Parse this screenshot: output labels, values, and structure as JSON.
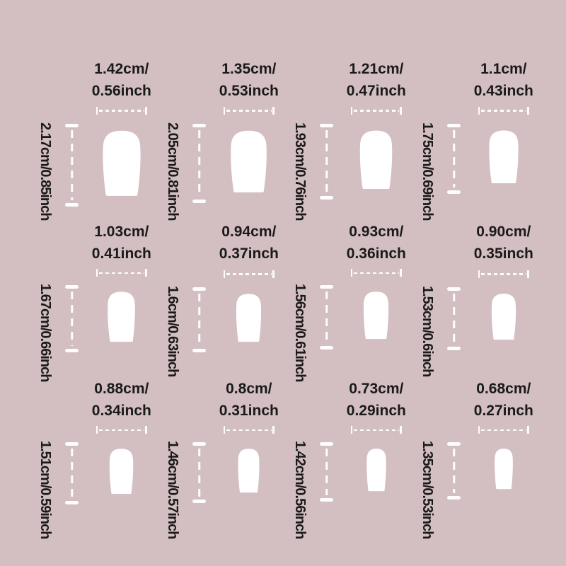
{
  "background_color": "#d3bec1",
  "text_color": "#1a1a1a",
  "measure_line_color": "#fdfdfd",
  "nail_color": "#ffffff",
  "description": "Press-on nail tip size chart, 12 sizes in 3 rows x 4 columns",
  "nails": [
    {
      "width_label_line1": "1.42cm/",
      "width_label_line2": "0.56inch",
      "height_label": "2.17cm/0.85inch",
      "width_cm": 1.42,
      "height_cm": 2.17
    },
    {
      "width_label_line1": "1.35cm/",
      "width_label_line2": "0.53inch",
      "height_label": "2.05cm/0.81inch",
      "width_cm": 1.35,
      "height_cm": 2.05
    },
    {
      "width_label_line1": "1.21cm/",
      "width_label_line2": "0.47inch",
      "height_label": "1.93cm/0.76inch",
      "width_cm": 1.21,
      "height_cm": 1.93
    },
    {
      "width_label_line1": "1.1cm/",
      "width_label_line2": "0.43inch",
      "height_label": "1.75cm/0.69inch",
      "width_cm": 1.1,
      "height_cm": 1.75
    },
    {
      "width_label_line1": "1.03cm/",
      "width_label_line2": "0.41inch",
      "height_label": "1.67cm/0.66inch",
      "width_cm": 1.03,
      "height_cm": 1.67
    },
    {
      "width_label_line1": "0.94cm/",
      "width_label_line2": "0.37inch",
      "height_label": "1.6cm/0.63inch",
      "width_cm": 0.94,
      "height_cm": 1.6
    },
    {
      "width_label_line1": "0.93cm/",
      "width_label_line2": "0.36inch",
      "height_label": "1.56cm/0.61inch",
      "width_cm": 0.93,
      "height_cm": 1.56
    },
    {
      "width_label_line1": "0.90cm/",
      "width_label_line2": "0.35inch",
      "height_label": "1.53cm/0.6inch",
      "width_cm": 0.9,
      "height_cm": 1.53
    },
    {
      "width_label_line1": "0.88cm/",
      "width_label_line2": "0.34inch",
      "height_label": "1.51cm/0.59inch",
      "width_cm": 0.88,
      "height_cm": 1.51
    },
    {
      "width_label_line1": "0.8cm/",
      "width_label_line2": "0.31inch",
      "height_label": "1.46cm/0.57inch",
      "width_cm": 0.8,
      "height_cm": 1.46
    },
    {
      "width_label_line1": "0.73cm/",
      "width_label_line2": "0.29inch",
      "height_label": "1.42cm/0.56inch",
      "width_cm": 0.73,
      "height_cm": 1.42
    },
    {
      "width_label_line1": "0.68cm/",
      "width_label_line2": "0.27inch",
      "height_label": "1.35cm/0.53inch",
      "width_cm": 0.68,
      "height_cm": 1.35
    }
  ]
}
